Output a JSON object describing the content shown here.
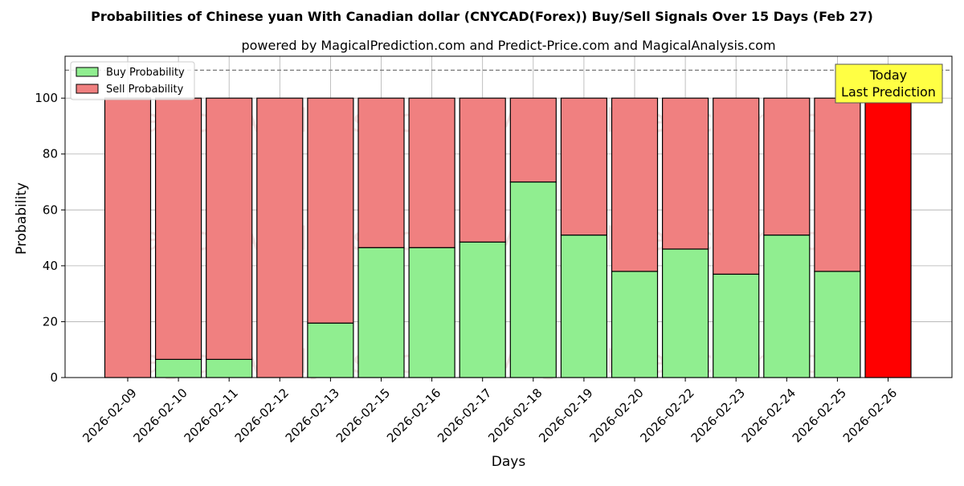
{
  "chart_data": {
    "type": "bar",
    "stacked": true,
    "title": "Probabilities of Chinese yuan With Canadian dollar (CNYCAD(Forex)) Buy/Sell Signals Over 15 Days (Feb 27)",
    "subtitle": "powered by MagicalPrediction.com and Predict-Price.com and MagicalAnalysis.com",
    "xlabel": "Days",
    "ylabel": "Probability",
    "ylim": [
      0,
      115
    ],
    "yticks": [
      0,
      20,
      40,
      60,
      80,
      100
    ],
    "reference_line": 110,
    "grid": true,
    "legend_position": "top-left",
    "categories": [
      "2026-02-09",
      "2026-02-10",
      "2026-02-11",
      "2026-02-12",
      "2026-02-13",
      "2026-02-15",
      "2026-02-16",
      "2026-02-17",
      "2026-02-18",
      "2026-02-19",
      "2026-02-20",
      "2026-02-22",
      "2026-02-23",
      "2026-02-24",
      "2026-02-25",
      "2026-02-26"
    ],
    "series": [
      {
        "name": "Buy Probability",
        "color": "#90ee90",
        "values": [
          0,
          6.5,
          6.5,
          0,
          19.5,
          46.5,
          46.5,
          48.5,
          70,
          51,
          38,
          46,
          37,
          51,
          38,
          0
        ]
      },
      {
        "name": "Sell Probability",
        "color": "#f08080",
        "values": [
          100,
          93.5,
          93.5,
          100,
          80.5,
          53.5,
          53.5,
          51.5,
          30,
          49,
          62,
          54,
          63,
          49,
          62,
          100
        ]
      }
    ],
    "highlight": {
      "index": 15,
      "color": "#ff0000"
    },
    "annotation": {
      "lines": [
        "Today",
        "Last Prediction"
      ],
      "color": "#ffff44"
    },
    "watermark": [
      "MagicalAnalysis.com",
      "MagicalPrediction.com"
    ]
  }
}
